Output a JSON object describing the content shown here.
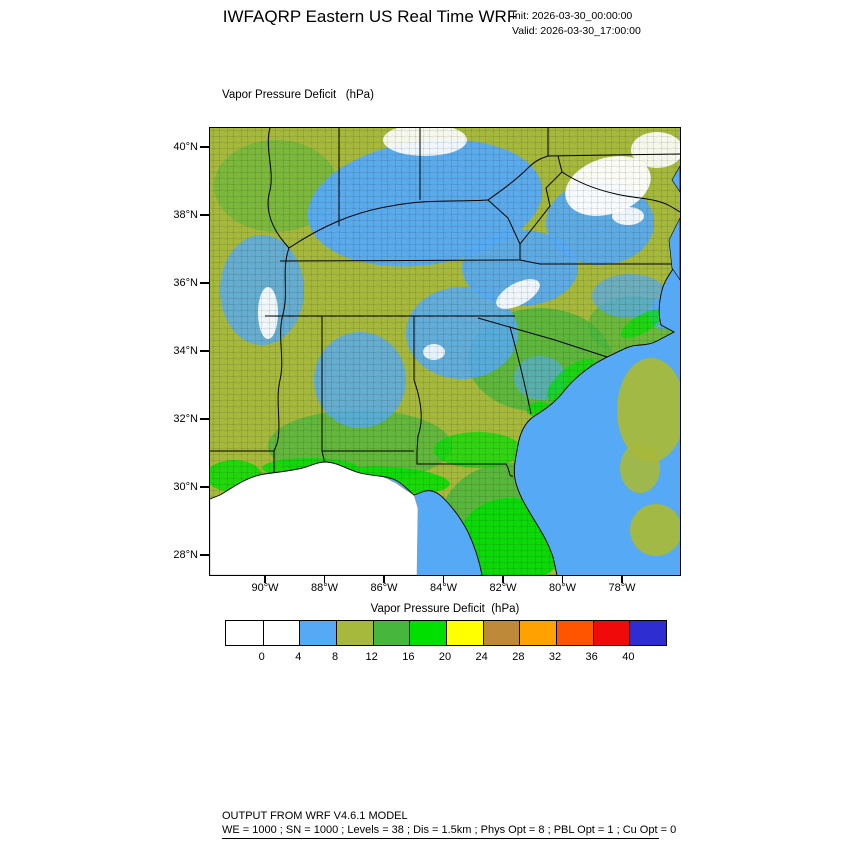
{
  "header": {
    "title": "IWFAQRP Eastern US Real Time WRF",
    "init_label": "Init: 2026-03-30_00:00:00",
    "valid_label": "Valid: 2026-03-30_17:00:00"
  },
  "map": {
    "field_label": "Vapor Pressure Deficit   (hPa)",
    "lat_ticks": [
      "40°N",
      "38°N",
      "36°N",
      "34°N",
      "32°N",
      "30°N",
      "28°N"
    ],
    "lon_ticks": [
      "90°W",
      "88°W",
      "86°W",
      "84°W",
      "82°W",
      "80°W",
      "78°W"
    ]
  },
  "colorbar": {
    "label": "Vapor Pressure Deficit  (hPa)",
    "tick_labels": [
      "0",
      "4",
      "8",
      "12",
      "16",
      "20",
      "24",
      "28",
      "32",
      "36",
      "40"
    ],
    "cell_colors": [
      "#FFFFFF",
      "#FFFFFF",
      "#56AAF5",
      "#A6B93C",
      "#46B73C",
      "#00DF00",
      "#FFFF00",
      "#BE8A3A",
      "#FFA100",
      "#FF5500",
      "#F00A0A",
      "#2D2DD2"
    ]
  },
  "footer": {
    "line1": "OUTPUT FROM WRF V4.6.1 MODEL",
    "line2": "WE = 1000 ; SN = 1000 ; Levels = 38 ; Dis = 1.5km ; Phys Opt = 8 ; PBL Opt = 1 ; Cu Opt = 0"
  },
  "chart_data": {
    "type": "heatmap",
    "title": "Vapor Pressure Deficit (hPa)",
    "colorbar_values": [
      0,
      4,
      8,
      12,
      16,
      20,
      24,
      28,
      32,
      36,
      40
    ],
    "lat_axis": [
      "40°N",
      "38°N",
      "36°N",
      "34°N",
      "32°N",
      "30°N",
      "28°N"
    ],
    "lon_axis": [
      "90°W",
      "88°W",
      "86°W",
      "84°W",
      "82°W",
      "80°W",
      "78°W"
    ],
    "legend_position": "bottom"
  }
}
